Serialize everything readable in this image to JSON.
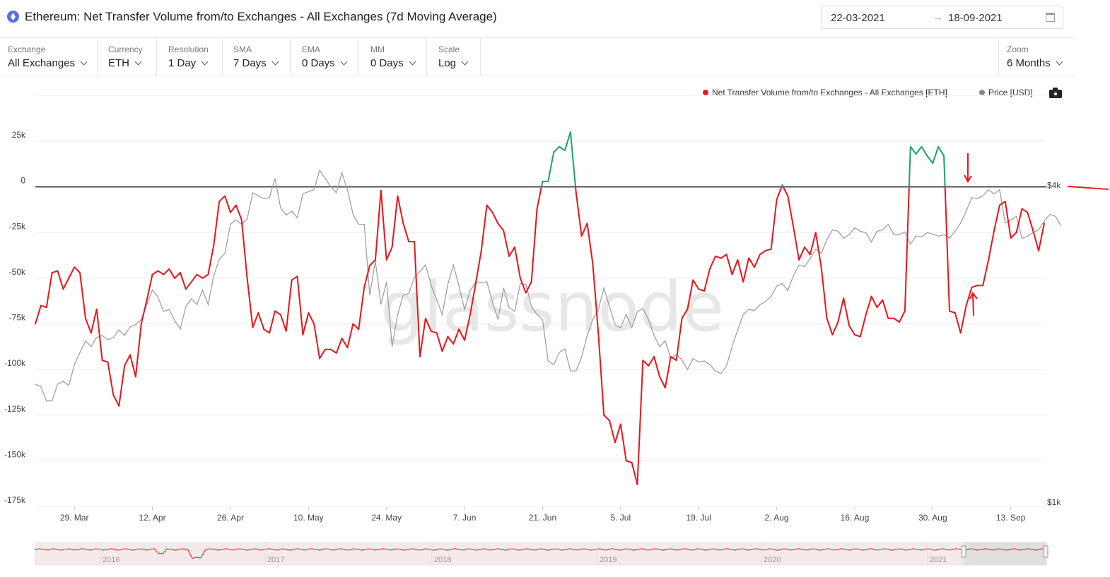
{
  "header": {
    "title": "Ethereum: Net Transfer Volume from/to Exchanges - All Exchanges (7d Moving Average)",
    "date_from": "22-03-2021",
    "date_to": "18-09-2021",
    "arrow": "→",
    "icon": "ethereum-icon"
  },
  "controls": [
    {
      "label": "Exchange",
      "value": "All Exchanges"
    },
    {
      "label": "Currency",
      "value": "ETH"
    },
    {
      "label": "Resolution",
      "value": "1 Day"
    },
    {
      "label": "SMA",
      "value": "7 Days"
    },
    {
      "label": "EMA",
      "value": "0 Days"
    },
    {
      "label": "MM",
      "value": "0 Days"
    },
    {
      "label": "Scale",
      "value": "Log"
    }
  ],
  "zoom": {
    "label": "Zoom",
    "value": "6 Months"
  },
  "legend": {
    "volume": "Net Transfer Volume from/to Exchanges - All Exchanges [ETH]",
    "price": "Price [USD]"
  },
  "watermark": "glassnode",
  "colors": {
    "outflow": "#e8141c",
    "inflow": "#1aa36b",
    "price": "#9a9a9a",
    "annotation": "#e8141c"
  },
  "chart_data": {
    "type": "line",
    "x_start": "2021-03-22",
    "x_step_days": 1,
    "y_left": {
      "min": -175000,
      "max": 25000,
      "ticks": [
        25000,
        0,
        -25000,
        -50000,
        -75000,
        -100000,
        -125000,
        -150000,
        -175000
      ],
      "tick_labels": [
        "25k",
        "0",
        "-25k",
        "-50k",
        "-75k",
        "-100k",
        "-125k",
        "-150k",
        "-175k"
      ]
    },
    "y_right": {
      "scale": "log",
      "min": 1000,
      "max": 4000,
      "tick_labels": [
        "$4k",
        "$1k"
      ]
    },
    "x_ticks": [
      {
        "label": "29. Mar",
        "day": 7
      },
      {
        "label": "12. Apr",
        "day": 21
      },
      {
        "label": "26. Apr",
        "day": 35
      },
      {
        "label": "10. May",
        "day": 49
      },
      {
        "label": "24. May",
        "day": 63
      },
      {
        "label": "7. Jun",
        "day": 77
      },
      {
        "label": "21. Jun",
        "day": 91
      },
      {
        "label": "5. Jul",
        "day": 105
      },
      {
        "label": "19. Jul",
        "day": 119
      },
      {
        "label": "2. Aug",
        "day": 133
      },
      {
        "label": "16. Aug",
        "day": 147
      },
      {
        "label": "30. Aug",
        "day": 161
      },
      {
        "label": "13. Sep",
        "day": 175
      }
    ],
    "series": [
      {
        "name": "Net Transfer Volume from/to Exchanges - All Exchanges [ETH]",
        "axis": "left",
        "values": [
          -75000,
          -65000,
          -66000,
          -47000,
          -46000,
          -56000,
          -50000,
          -44000,
          -47000,
          -72000,
          -80000,
          -67000,
          -95000,
          -96000,
          -114000,
          -120000,
          -98000,
          -92000,
          -104000,
          -75000,
          -62000,
          -48000,
          -46000,
          -48000,
          -45000,
          -50000,
          -47000,
          -56000,
          -52000,
          -48000,
          -50000,
          -48000,
          -32000,
          -8000,
          -5000,
          -14000,
          -10000,
          -18000,
          -50000,
          -77000,
          -69000,
          -78000,
          -80000,
          -68000,
          -70000,
          -79000,
          -51000,
          -49000,
          -81000,
          -69000,
          -75000,
          -94000,
          -89000,
          -89000,
          -91000,
          -83000,
          -88000,
          -75000,
          -78000,
          -55000,
          -43000,
          -40000,
          -2000,
          -40000,
          -33000,
          -5000,
          -20000,
          -30000,
          -30000,
          -93000,
          -72000,
          -79000,
          -80000,
          -90000,
          -82000,
          -86000,
          -78000,
          -84000,
          -70000,
          -53000,
          -35000,
          -10000,
          -14000,
          -20000,
          -24000,
          -38000,
          -33000,
          -50000,
          -58000,
          -52000,
          -12000,
          3000,
          3000,
          19000,
          22000,
          20000,
          30000,
          -3000,
          -27000,
          -20000,
          -42000,
          -80000,
          -125000,
          -128000,
          -140000,
          -130000,
          -150000,
          -151000,
          -163000,
          -95000,
          -98000,
          -93000,
          -104000,
          -110000,
          -93000,
          -95000,
          -72000,
          -67000,
          -51000,
          -56000,
          -57000,
          -45000,
          -38000,
          -39000,
          -37000,
          -48000,
          -40000,
          -52000,
          -39000,
          -44000,
          -37000,
          -35000,
          -34000,
          -7000,
          1000,
          -5000,
          -22000,
          -40000,
          -33000,
          -37000,
          -25000,
          -44000,
          -72000,
          -81000,
          -74000,
          -61000,
          -76000,
          -81000,
          -82000,
          -70000,
          -60000,
          -66000,
          -62000,
          -72000,
          -72000,
          -74000,
          -68000,
          22000,
          18000,
          22000,
          17000,
          13000,
          22000,
          17000,
          -68000,
          -69000,
          -80000,
          -65000,
          -55000,
          -54000,
          -54000,
          -40000,
          -24000,
          -10000,
          -8000,
          -28000,
          -25000,
          -12000,
          -14000,
          -24000,
          -35000,
          -20000
        ]
      },
      {
        "name": "Price [USD]",
        "axis": "right",
        "values": [
          1700,
          1680,
          1580,
          1580,
          1700,
          1720,
          1690,
          1850,
          1950,
          2050,
          2000,
          2080,
          2100,
          2060,
          2080,
          2150,
          2100,
          2180,
          2200,
          2250,
          2400,
          2560,
          2480,
          2330,
          2350,
          2240,
          2160,
          2380,
          2460,
          2400,
          2560,
          2400,
          2720,
          2920,
          3000,
          3400,
          3470,
          3400,
          3480,
          3900,
          3850,
          3800,
          3820,
          4150,
          3650,
          3540,
          3600,
          3500,
          3880,
          3920,
          3950,
          4300,
          4150,
          4000,
          3900,
          4250,
          3950,
          3550,
          3400,
          3400,
          2500,
          2900,
          2400,
          2650,
          2000,
          2300,
          2500,
          2520,
          2700,
          2770,
          2850,
          2610,
          2450,
          2300,
          2620,
          2850,
          2600,
          2350,
          2550,
          2650,
          2640,
          2650,
          2430,
          2250,
          2580,
          2370,
          2330,
          2630,
          2620,
          2380,
          2300,
          2250,
          1880,
          1850,
          1950,
          1980,
          1800,
          1800,
          1910,
          2100,
          2250,
          2350,
          2580,
          2380,
          2200,
          2170,
          2300,
          2170,
          2330,
          2360,
          2250,
          2100,
          2000,
          2050,
          1900,
          1930,
          1890,
          1810,
          1900,
          1870,
          1880,
          1850,
          1800,
          1780,
          1840,
          2000,
          2150,
          2300,
          2350,
          2340,
          2400,
          2430,
          2490,
          2600,
          2630,
          2550,
          2720,
          2850,
          2830,
          2930,
          3050,
          3000,
          3180,
          3320,
          3300,
          3200,
          3250,
          3350,
          3300,
          3280,
          3150,
          3300,
          3320,
          3400,
          3260,
          3250,
          3290,
          3120,
          3230,
          3220,
          3280,
          3260,
          3230,
          3250,
          3200,
          3300,
          3420,
          3600,
          3820,
          3800,
          3850,
          3950,
          3880,
          3950,
          3420,
          3460,
          3520,
          3200,
          3230,
          3280,
          3320,
          3450,
          3550,
          3520,
          3380
        ]
      }
    ],
    "navigator_years": [
      "2016",
      "2017",
      "2018",
      "2019",
      "2020",
      "2021"
    ]
  }
}
